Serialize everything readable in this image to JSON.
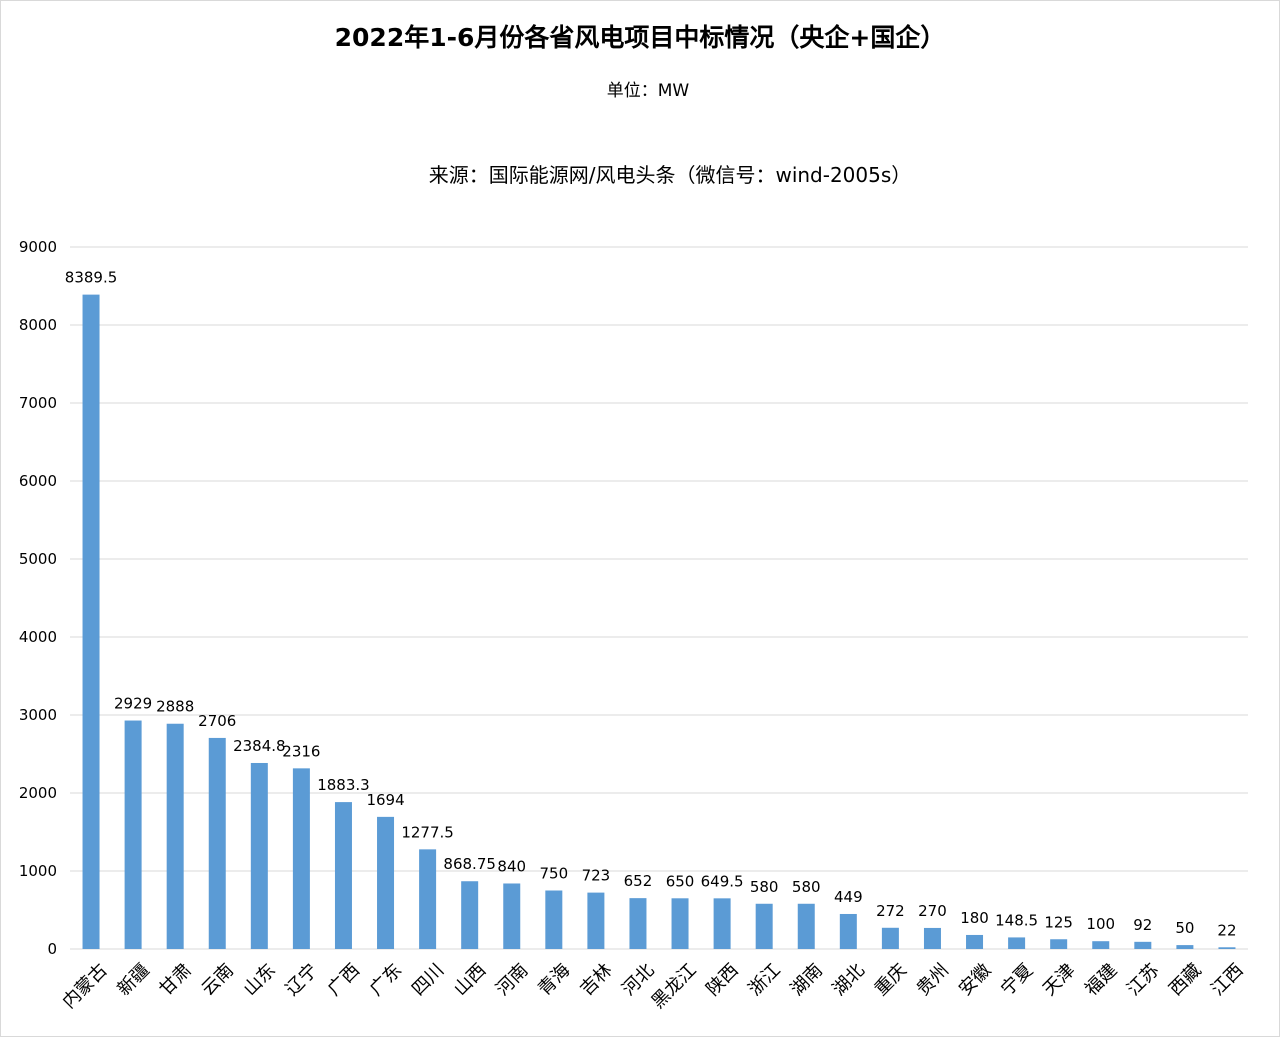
{
  "chart_data": {
    "type": "bar",
    "title": "2022年1-6月份各省风电项目中标情况（央企+国企）",
    "subtitle": "单位：MW",
    "source": "来源：国际能源网/风电头条（微信号：wind-2005s）",
    "categories": [
      "内蒙古",
      "新疆",
      "甘肃",
      "云南",
      "山东",
      "辽宁",
      "广西",
      "广东",
      "四川",
      "山西",
      "河南",
      "青海",
      "吉林",
      "河北",
      "黑龙江",
      "陕西",
      "浙江",
      "湖南",
      "湖北",
      "重庆",
      "贵州",
      "安徽",
      "宁夏",
      "天津",
      "福建",
      "江苏",
      "西藏",
      "江西"
    ],
    "values": [
      8389.5,
      2929,
      2888,
      2706,
      2384.8,
      2316,
      1883.3,
      1694,
      1277.5,
      868.75,
      840,
      750,
      723,
      652,
      650,
      649.5,
      580,
      580,
      449,
      272,
      270,
      180,
      148.5,
      125,
      100,
      92,
      50,
      22
    ],
    "value_labels": [
      "8389.5",
      "2929",
      "2888",
      "2706",
      "2384.8",
      "2316",
      "1883.3",
      "1694",
      "1277.5",
      "868.75",
      "840",
      "750",
      "723",
      "652",
      "650",
      "649.5",
      "580",
      "580",
      "449",
      "272",
      "270",
      "180",
      "148.5",
      "125",
      "100",
      "92",
      "50",
      "22"
    ],
    "ylim": [
      0,
      9000
    ],
    "yticks": [
      "0",
      "1000",
      "2000",
      "3000",
      "4000",
      "5000",
      "6000",
      "7000",
      "8000",
      "9000"
    ],
    "grid": true,
    "legend": "none",
    "bar_color": "#5b9bd5",
    "grid_color": "#d9d9d9"
  }
}
